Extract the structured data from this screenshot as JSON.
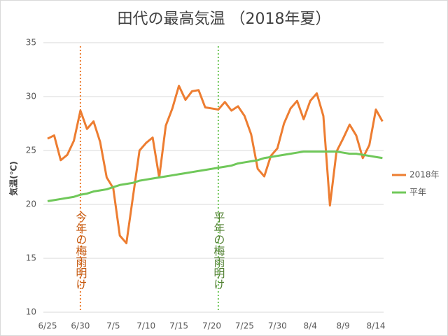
{
  "chart_data": {
    "type": "line",
    "title": "田代の最高気温 （2018年夏）",
    "y_label": "気温(℃)",
    "categories": [
      "6/25",
      null,
      null,
      null,
      null,
      "6/30",
      null,
      null,
      null,
      null,
      "7/5",
      null,
      null,
      null,
      null,
      "7/10",
      null,
      null,
      null,
      null,
      "7/15",
      null,
      null,
      null,
      null,
      "7/20",
      null,
      null,
      null,
      null,
      "7/25",
      null,
      null,
      null,
      null,
      "7/30",
      null,
      null,
      null,
      null,
      "8/4",
      null,
      null,
      null,
      null,
      "8/9",
      null,
      null,
      null,
      null,
      "8/14",
      null
    ],
    "series": [
      {
        "name": "2018年",
        "color": "#ed7d31",
        "values": [
          26.1,
          26.4,
          24.1,
          24.6,
          25.9,
          28.7,
          27.0,
          27.7,
          25.8,
          22.5,
          21.5,
          17.1,
          16.4,
          20.7,
          25.0,
          25.7,
          26.2,
          22.5,
          27.3,
          28.9,
          31.0,
          29.7,
          30.5,
          30.6,
          29.0,
          28.9,
          28.8,
          29.5,
          28.7,
          29.1,
          28.2,
          26.5,
          23.3,
          22.6,
          24.5,
          25.2,
          27.5,
          28.9,
          29.6,
          27.9,
          29.6,
          30.3,
          28.2,
          19.9,
          24.9,
          26.1,
          27.4,
          26.4,
          24.3,
          25.5,
          28.8,
          27.7
        ]
      },
      {
        "name": "平年",
        "color": "#70c85a",
        "values": [
          20.3,
          20.4,
          20.5,
          20.6,
          20.7,
          20.9,
          21.0,
          21.2,
          21.3,
          21.4,
          21.6,
          21.8,
          21.9,
          22.0,
          22.2,
          22.3,
          22.4,
          22.5,
          22.6,
          22.7,
          22.8,
          22.9,
          23.0,
          23.1,
          23.2,
          23.3,
          23.4,
          23.5,
          23.6,
          23.8,
          23.9,
          24.0,
          24.1,
          24.3,
          24.4,
          24.5,
          24.6,
          24.7,
          24.8,
          24.9,
          24.9,
          24.9,
          24.9,
          24.9,
          24.9,
          24.8,
          24.7,
          24.7,
          24.6,
          24.5,
          24.4,
          24.3
        ]
      }
    ],
    "annotations": [
      {
        "text": "今年の梅雨明け",
        "color": "#c55a11",
        "line_color": "#ed7d31"
      },
      {
        "text": "平年の梅雨明け",
        "color": "#548235",
        "line_color": "#70c85a"
      }
    ],
    "ylim": [
      10,
      35
    ],
    "yticks": [
      10,
      15,
      20,
      25,
      30,
      35
    ],
    "grid": true,
    "legend": "right"
  }
}
